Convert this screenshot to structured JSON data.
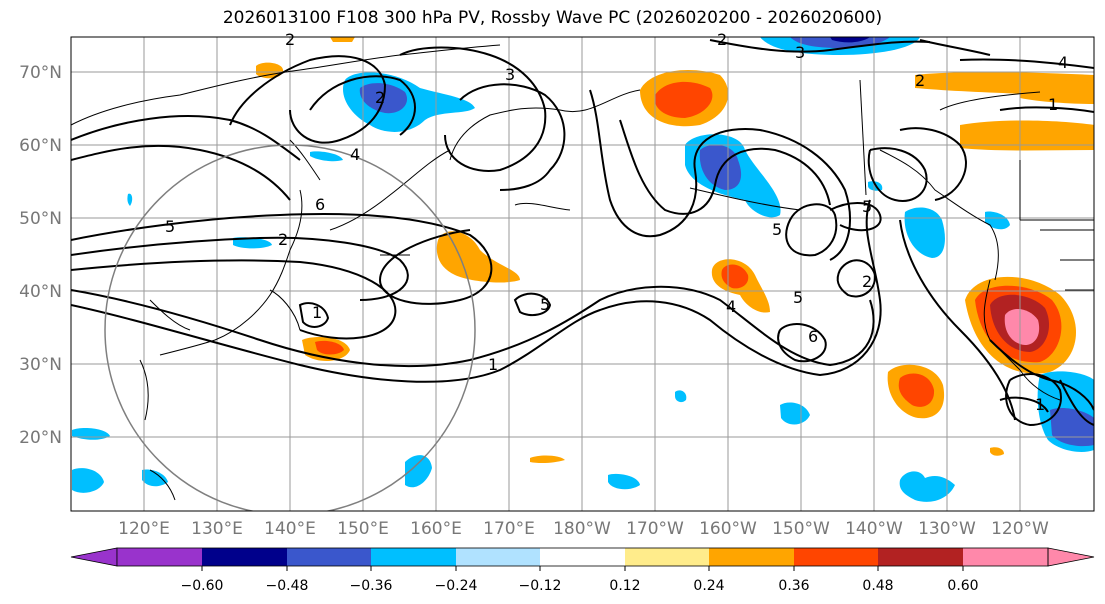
{
  "title": "2026013100 F108 300 hPa PV, Rossby Wave PC (2026020200 - 2026020600)",
  "map": {
    "projection": "PlateCarree",
    "lon_range": [
      110,
      250
    ],
    "lat_range": [
      10,
      75
    ],
    "lat_labels": [
      "70°N",
      "60°N",
      "50°N",
      "40°N",
      "30°N",
      "20°N"
    ],
    "lon_labels": [
      "120°E",
      "130°E",
      "140°E",
      "150°E",
      "160°E",
      "170°E",
      "180°W",
      "170°W",
      "160°W",
      "150°W",
      "140°W",
      "130°W",
      "120°W"
    ],
    "contour_labels": [
      "2",
      "3",
      "4",
      "5",
      "6",
      "2",
      "5",
      "1",
      "1",
      "5",
      "4",
      "5",
      "6",
      "5",
      "2",
      "1",
      "3",
      "4",
      "1",
      "2",
      "6",
      "2"
    ]
  },
  "colorbar": {
    "tick_labels": [
      "−0.60",
      "−0.48",
      "−0.36",
      "−0.24",
      "−0.12",
      "0.12",
      "0.24",
      "0.36",
      "0.48",
      "0.60"
    ],
    "colors": [
      "#9933cc",
      "#00008b",
      "#3a57cc",
      "#00bfff",
      "#b0e2ff",
      "#ffffff",
      "#ffec8b",
      "#ffa500",
      "#ff4500",
      "#b22222",
      "#ff88aa"
    ]
  },
  "colors": {
    "grid": "#9a9a9a",
    "coast": "#000000",
    "contour": "#000000",
    "circle": "#7f7f7f"
  }
}
